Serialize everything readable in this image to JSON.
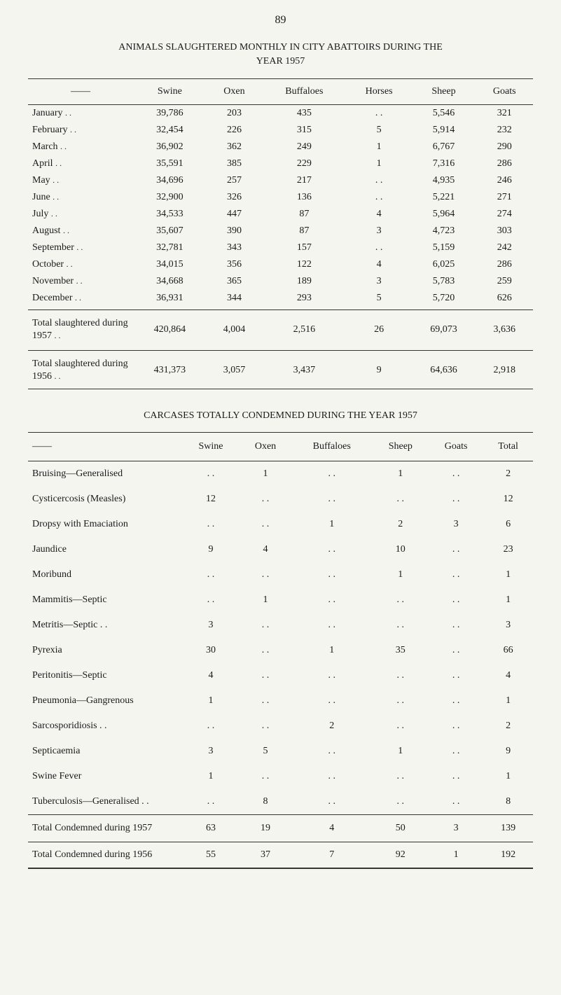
{
  "page_number": "89",
  "table1": {
    "title_line1": "ANIMALS SLAUGHTERED MONTHLY IN CITY ABATTOIRS DURING THE",
    "title_line2": "YEAR 1957",
    "dash": "——",
    "columns": [
      "Swine",
      "Oxen",
      "Buffaloes",
      "Horses",
      "Sheep",
      "Goats"
    ],
    "rows": [
      {
        "label": "January",
        "values": [
          "39,786",
          "203",
          "435",
          ". .",
          "5,546",
          "321"
        ]
      },
      {
        "label": "February",
        "values": [
          "32,454",
          "226",
          "315",
          "5",
          "5,914",
          "232"
        ]
      },
      {
        "label": "March",
        "values": [
          "36,902",
          "362",
          "249",
          "1",
          "6,767",
          "290"
        ]
      },
      {
        "label": "April",
        "values": [
          "35,591",
          "385",
          "229",
          "1",
          "7,316",
          "286"
        ]
      },
      {
        "label": "May",
        "values": [
          "34,696",
          "257",
          "217",
          ". .",
          "4,935",
          "246"
        ]
      },
      {
        "label": "June",
        "values": [
          "32,900",
          "326",
          "136",
          ". .",
          "5,221",
          "271"
        ]
      },
      {
        "label": "July",
        "values": [
          "34,533",
          "447",
          "87",
          "4",
          "5,964",
          "274"
        ]
      },
      {
        "label": "August",
        "values": [
          "35,607",
          "390",
          "87",
          "3",
          "4,723",
          "303"
        ]
      },
      {
        "label": "September",
        "values": [
          "32,781",
          "343",
          "157",
          ". .",
          "5,159",
          "242"
        ]
      },
      {
        "label": "October",
        "values": [
          "34,015",
          "356",
          "122",
          "4",
          "6,025",
          "286"
        ]
      },
      {
        "label": "November",
        "values": [
          "34,668",
          "365",
          "189",
          "3",
          "5,783",
          "259"
        ]
      },
      {
        "label": "December",
        "values": [
          "36,931",
          "344",
          "293",
          "5",
          "5,720",
          "626"
        ]
      }
    ],
    "total1": {
      "label": "Total slaughtered during 1957",
      "values": [
        "420,864",
        "4,004",
        "2,516",
        "26",
        "69,073",
        "3,636"
      ]
    },
    "total2": {
      "label": "Total slaughtered during 1956",
      "values": [
        "431,373",
        "3,057",
        "3,437",
        "9",
        "64,636",
        "2,918"
      ]
    }
  },
  "table2": {
    "title": "CARCASES TOTALLY CONDEMNED DURING THE YEAR 1957",
    "dash": "——",
    "columns": [
      "Swine",
      "Oxen",
      "Buffaloes",
      "Sheep",
      "Goats",
      "Total"
    ],
    "rows": [
      {
        "label": "Bruising—Generalised",
        "values": [
          ". .",
          "1",
          ". .",
          "1",
          ". .",
          "2"
        ]
      },
      {
        "label": "Cysticercosis (Measles)",
        "values": [
          "12",
          ". .",
          ". .",
          ". .",
          ". .",
          "12"
        ]
      },
      {
        "label": "Dropsy with Emaciation",
        "values": [
          ". .",
          ". .",
          "1",
          "2",
          "3",
          "6"
        ]
      },
      {
        "label": "Jaundice",
        "values": [
          "9",
          "4",
          ". .",
          "10",
          ". .",
          "23"
        ]
      },
      {
        "label": "Moribund",
        "values": [
          ". .",
          ". .",
          ". .",
          "1",
          ". .",
          "1"
        ]
      },
      {
        "label": "Mammitis—Septic",
        "values": [
          ". .",
          "1",
          ". .",
          ". .",
          ". .",
          "1"
        ]
      },
      {
        "label": "Metritis—Septic . .",
        "values": [
          "3",
          ". .",
          ". .",
          ". .",
          ". .",
          "3"
        ]
      },
      {
        "label": "Pyrexia",
        "values": [
          "30",
          ". .",
          "1",
          "35",
          ". .",
          "66"
        ]
      },
      {
        "label": "Peritonitis—Septic",
        "values": [
          "4",
          ". .",
          ". .",
          ". .",
          ". .",
          "4"
        ]
      },
      {
        "label": "Pneumonia—Gangrenous",
        "values": [
          "1",
          ". .",
          ". .",
          ". .",
          ". .",
          "1"
        ]
      },
      {
        "label": "Sarcosporidiosis . .",
        "values": [
          ". .",
          ". .",
          "2",
          ". .",
          ". .",
          "2"
        ]
      },
      {
        "label": "Septicaemia",
        "values": [
          "3",
          "5",
          ". .",
          "1",
          ". .",
          "9"
        ]
      },
      {
        "label": "Swine Fever",
        "values": [
          "1",
          ". .",
          ". .",
          ". .",
          ". .",
          "1"
        ]
      },
      {
        "label": "Tuberculosis—Generalised  . .",
        "values": [
          ". .",
          "8",
          ". .",
          ". .",
          ". .",
          "8"
        ]
      }
    ],
    "total1": {
      "label": "Total Condemned during 1957",
      "values": [
        "63",
        "19",
        "4",
        "50",
        "3",
        "139"
      ]
    },
    "total2": {
      "label": "Total Condemned during 1956",
      "values": [
        "55",
        "37",
        "7",
        "92",
        "1",
        "192"
      ]
    }
  }
}
